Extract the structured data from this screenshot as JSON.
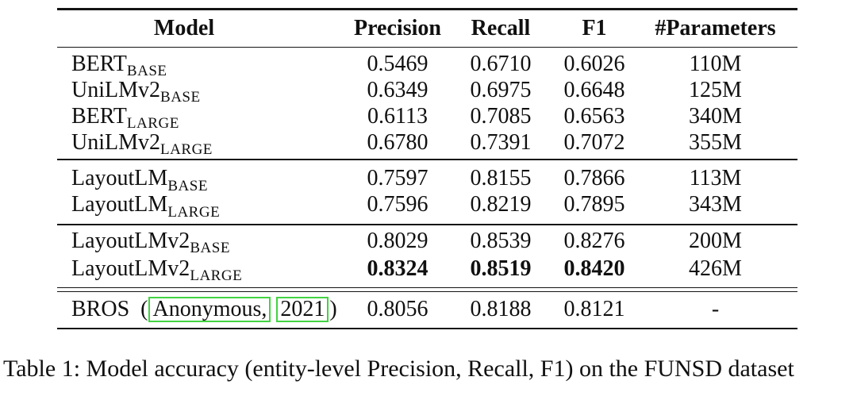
{
  "header": {
    "columns": [
      "Model",
      "Precision",
      "Recall",
      "F1",
      "#Parameters"
    ]
  },
  "groups": [
    {
      "rows": [
        {
          "model": "BERT",
          "sub": "BASE",
          "precision": "0.5469",
          "recall": "0.6710",
          "f1": "0.6026",
          "params": "110M"
        },
        {
          "model": "UniLMv2",
          "sub": "BASE",
          "precision": "0.6349",
          "recall": "0.6975",
          "f1": "0.6648",
          "params": "125M"
        },
        {
          "model": "BERT",
          "sub": "LARGE",
          "precision": "0.6113",
          "recall": "0.7085",
          "f1": "0.6563",
          "params": "340M"
        },
        {
          "model": "UniLMv2",
          "sub": "LARGE",
          "precision": "0.6780",
          "recall": "0.7391",
          "f1": "0.7072",
          "params": "355M"
        }
      ]
    },
    {
      "rows": [
        {
          "model": "LayoutLM",
          "sub": "BASE",
          "precision": "0.7597",
          "recall": "0.8155",
          "f1": "0.7866",
          "params": "113M"
        },
        {
          "model": "LayoutLM",
          "sub": "LARGE",
          "precision": "0.7596",
          "recall": "0.8219",
          "f1": "0.7895",
          "params": "343M"
        }
      ]
    },
    {
      "rows": [
        {
          "model": "LayoutLMv2",
          "sub": "BASE",
          "precision": "0.8029",
          "recall": "0.8539",
          "f1": "0.8276",
          "params": "200M"
        },
        {
          "model": "LayoutLMv2",
          "sub": "LARGE",
          "precision": "0.8324",
          "recall": "0.8519",
          "f1": "0.8420",
          "params": "426M"
        }
      ]
    }
  ],
  "bros": {
    "name": "BROS",
    "paren_open": "(",
    "cite_author": "Anonymous,",
    "cite_year": "2021",
    "paren_close": ")",
    "precision": "0.8056",
    "recall": "0.8188",
    "f1": "0.8121",
    "params": "-"
  },
  "caption": "Table 1: Model accuracy (entity-level Precision, Recall, F1) on the FUNSD dataset",
  "colors": {
    "citation_box": "#42d342",
    "rule": "#141414",
    "text": "#101010"
  }
}
